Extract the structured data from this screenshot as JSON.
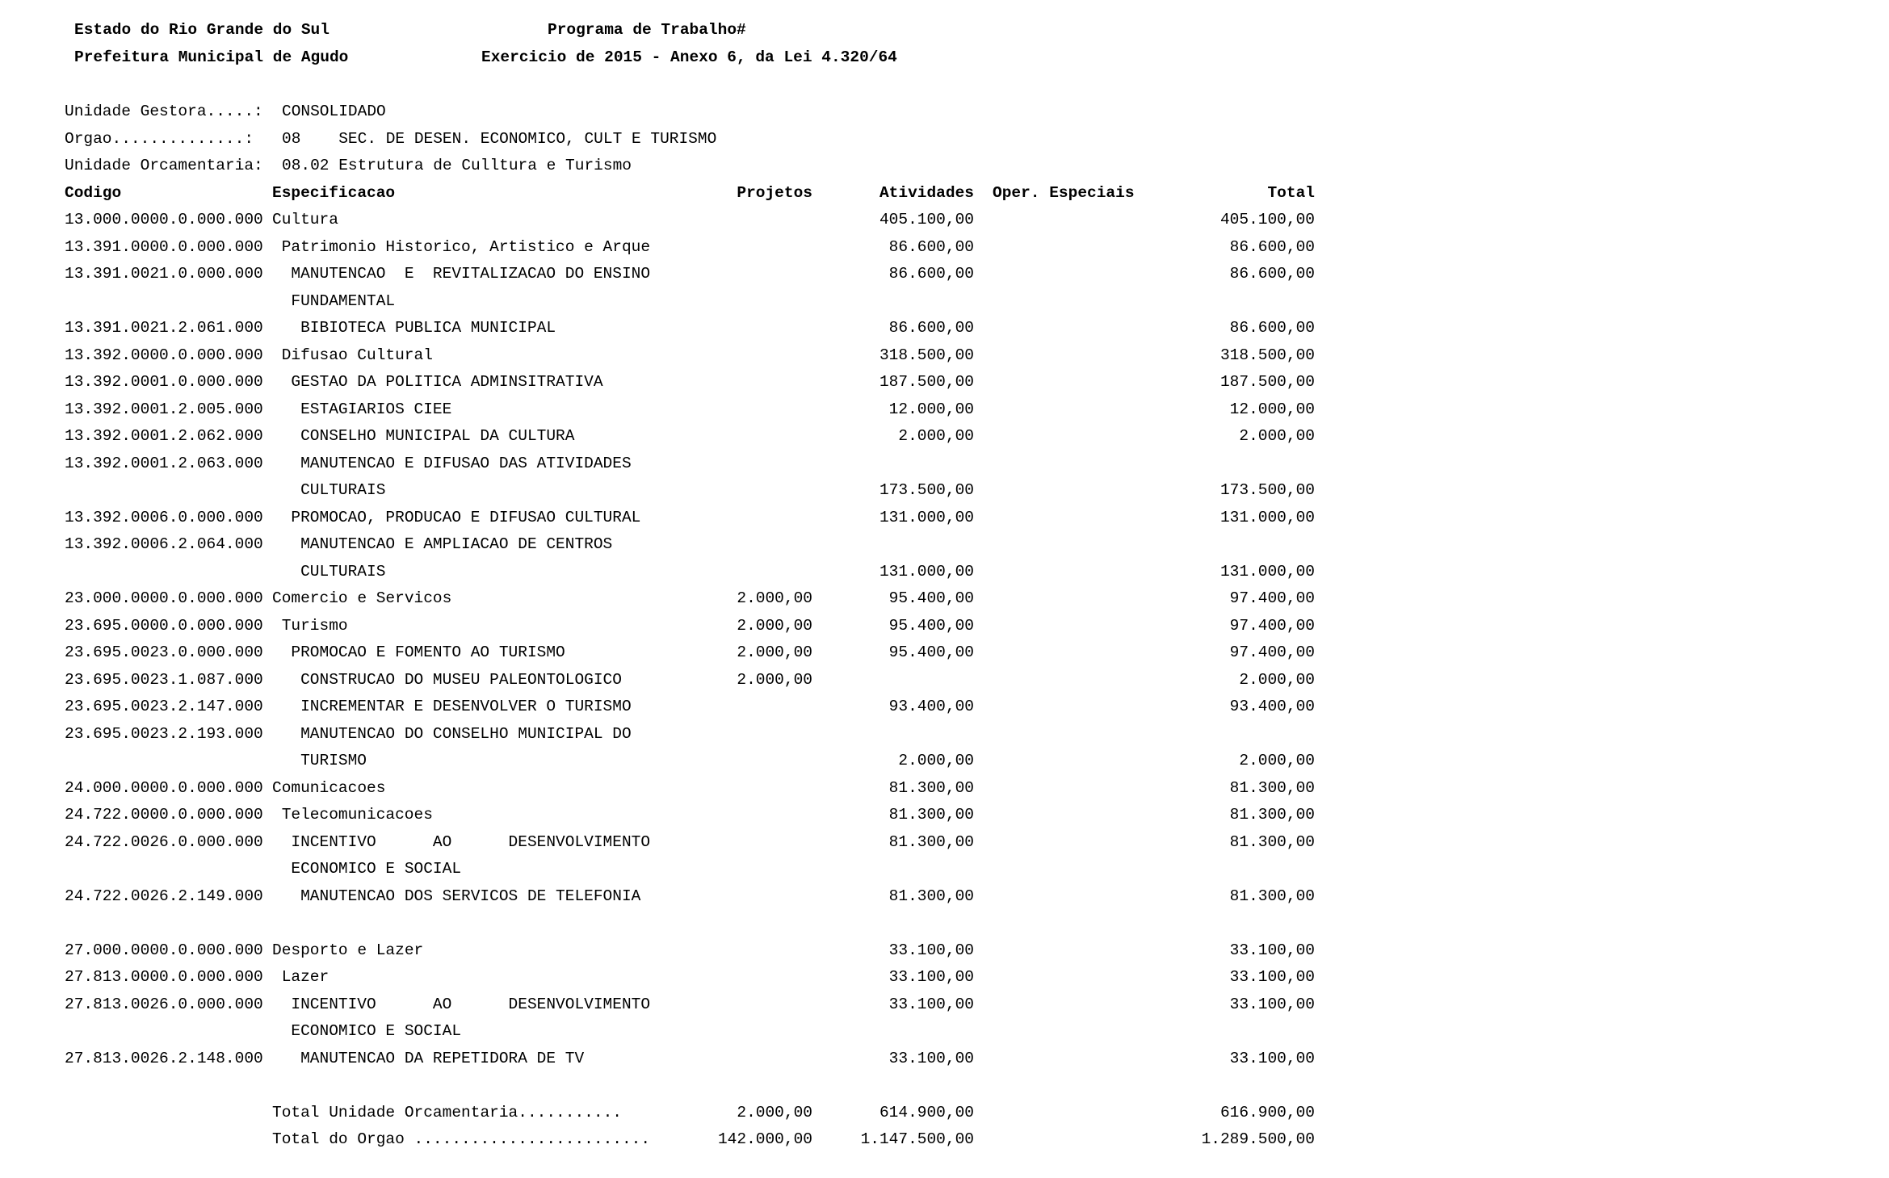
{
  "header": {
    "state": "Estado do Rio Grande do Sul",
    "city": "Prefeitura Municipal de Agudo",
    "title": "Programa de Trabalho#",
    "subtitle": "Exercicio de 2015 - Anexo 6, da Lei 4.320/64"
  },
  "info": {
    "unidade_gestora_label": "Unidade Gestora.....:",
    "unidade_gestora": "CONSOLIDADO",
    "orgao_label": "Orgao..............:",
    "orgao": "08    SEC. DE DESEN. ECONOMICO, CULT E TURISMO",
    "unidade_orc_label": "Unidade Orcamentaria:",
    "unidade_orc": "08.02 Estrutura de Culltura e Turismo"
  },
  "columns": {
    "codigo": "Codigo",
    "especificacao": "Especificacao",
    "projetos": "Projetos",
    "atividades": "Atividades",
    "oper_especiais": "Oper. Especiais",
    "total": "Total"
  },
  "rows": [
    {
      "code": "13.000.0000.0.000.000",
      "spec": "Cultura",
      "level": 0,
      "proj": "",
      "ativ": "405.100,00",
      "total": "405.100,00"
    },
    {
      "code": "13.391.0000.0.000.000",
      "spec": "Patrimonio Historico, Artistico e Arque",
      "level": 1,
      "proj": "",
      "ativ": "86.600,00",
      "total": "86.600,00"
    },
    {
      "code": "13.391.0021.0.000.000",
      "spec": "MANUTENCAO  E  REVITALIZACAO DO ENSINO",
      "level": 2,
      "proj": "",
      "ativ": "86.600,00",
      "total": "86.600,00"
    },
    {
      "code": "",
      "spec": "FUNDAMENTAL",
      "level": 2,
      "proj": "",
      "ativ": "",
      "total": ""
    },
    {
      "code": "13.391.0021.2.061.000",
      "spec": "BIBIOTECA PUBLICA MUNICIPAL",
      "level": 3,
      "proj": "",
      "ativ": "86.600,00",
      "total": "86.600,00"
    },
    {
      "code": "13.392.0000.0.000.000",
      "spec": "Difusao Cultural",
      "level": 1,
      "proj": "",
      "ativ": "318.500,00",
      "total": "318.500,00"
    },
    {
      "code": "13.392.0001.0.000.000",
      "spec": "GESTAO DA POLITICA ADMINSITRATIVA",
      "level": 2,
      "proj": "",
      "ativ": "187.500,00",
      "total": "187.500,00"
    },
    {
      "code": "13.392.0001.2.005.000",
      "spec": "ESTAGIARIOS CIEE",
      "level": 3,
      "proj": "",
      "ativ": "12.000,00",
      "total": "12.000,00"
    },
    {
      "code": "13.392.0001.2.062.000",
      "spec": "CONSELHO MUNICIPAL DA CULTURA",
      "level": 3,
      "proj": "",
      "ativ": "2.000,00",
      "total": "2.000,00"
    },
    {
      "code": "13.392.0001.2.063.000",
      "spec": "MANUTENCAO E DIFUSAO DAS ATIVIDADES",
      "level": 3,
      "proj": "",
      "ativ": "",
      "total": ""
    },
    {
      "code": "",
      "spec": "CULTURAIS",
      "level": 3,
      "proj": "",
      "ativ": "173.500,00",
      "total": "173.500,00"
    },
    {
      "code": "13.392.0006.0.000.000",
      "spec": "PROMOCAO, PRODUCAO E DIFUSAO CULTURAL",
      "level": 2,
      "proj": "",
      "ativ": "131.000,00",
      "total": "131.000,00"
    },
    {
      "code": "13.392.0006.2.064.000",
      "spec": "MANUTENCAO E AMPLIACAO DE CENTROS",
      "level": 3,
      "proj": "",
      "ativ": "",
      "total": ""
    },
    {
      "code": "",
      "spec": "CULTURAIS",
      "level": 3,
      "proj": "",
      "ativ": "131.000,00",
      "total": "131.000,00"
    },
    {
      "code": "23.000.0000.0.000.000",
      "spec": "Comercio e Servicos",
      "level": 0,
      "proj": "2.000,00",
      "ativ": "95.400,00",
      "total": "97.400,00"
    },
    {
      "code": "23.695.0000.0.000.000",
      "spec": "Turismo",
      "level": 1,
      "proj": "2.000,00",
      "ativ": "95.400,00",
      "total": "97.400,00"
    },
    {
      "code": "23.695.0023.0.000.000",
      "spec": "PROMOCAO E FOMENTO AO TURISMO",
      "level": 2,
      "proj": "2.000,00",
      "ativ": "95.400,00",
      "total": "97.400,00"
    },
    {
      "code": "23.695.0023.1.087.000",
      "spec": "CONSTRUCAO DO MUSEU PALEONTOLOGICO",
      "level": 3,
      "proj": "2.000,00",
      "ativ": "",
      "total": "2.000,00"
    },
    {
      "code": "23.695.0023.2.147.000",
      "spec": "INCREMENTAR E DESENVOLVER O TURISMO",
      "level": 3,
      "proj": "",
      "ativ": "93.400,00",
      "total": "93.400,00"
    },
    {
      "code": "23.695.0023.2.193.000",
      "spec": "MANUTENCAO DO CONSELHO MUNICIPAL DO",
      "level": 3,
      "proj": "",
      "ativ": "",
      "total": ""
    },
    {
      "code": "",
      "spec": "TURISMO",
      "level": 3,
      "proj": "",
      "ativ": "2.000,00",
      "total": "2.000,00"
    },
    {
      "code": "24.000.0000.0.000.000",
      "spec": "Comunicacoes",
      "level": 0,
      "proj": "",
      "ativ": "81.300,00",
      "total": "81.300,00"
    },
    {
      "code": "24.722.0000.0.000.000",
      "spec": "Telecomunicacoes",
      "level": 1,
      "proj": "",
      "ativ": "81.300,00",
      "total": "81.300,00"
    },
    {
      "code": "24.722.0026.0.000.000",
      "spec": "INCENTIVO      AO      DESENVOLVIMENTO",
      "level": 2,
      "proj": "",
      "ativ": "81.300,00",
      "total": "81.300,00"
    },
    {
      "code": "",
      "spec": "ECONOMICO E SOCIAL",
      "level": 2,
      "proj": "",
      "ativ": "",
      "total": ""
    },
    {
      "code": "24.722.0026.2.149.000",
      "spec": "MANUTENCAO DOS SERVICOS DE TELEFONIA",
      "level": 3,
      "proj": "",
      "ativ": "81.300,00",
      "total": "81.300,00"
    },
    {
      "code": "",
      "spec": "",
      "level": 0,
      "proj": "",
      "ativ": "",
      "total": ""
    },
    {
      "code": "27.000.0000.0.000.000",
      "spec": "Desporto e Lazer",
      "level": 0,
      "proj": "",
      "ativ": "33.100,00",
      "total": "33.100,00"
    },
    {
      "code": "27.813.0000.0.000.000",
      "spec": "Lazer",
      "level": 1,
      "proj": "",
      "ativ": "33.100,00",
      "total": "33.100,00"
    },
    {
      "code": "27.813.0026.0.000.000",
      "spec": "INCENTIVO      AO      DESENVOLVIMENTO",
      "level": 2,
      "proj": "",
      "ativ": "33.100,00",
      "total": "33.100,00"
    },
    {
      "code": "",
      "spec": "ECONOMICO E SOCIAL",
      "level": 2,
      "proj": "",
      "ativ": "",
      "total": ""
    },
    {
      "code": "27.813.0026.2.148.000",
      "spec": "MANUTENCAO DA REPETIDORA DE TV",
      "level": 3,
      "proj": "",
      "ativ": "33.100,00",
      "total": "33.100,00"
    },
    {
      "code": "",
      "spec": "",
      "level": 0,
      "proj": "",
      "ativ": "",
      "total": ""
    },
    {
      "code": "",
      "spec": "Total Unidade Orcamentaria...........",
      "level": 0,
      "proj": "2.000,00",
      "ativ": "614.900,00",
      "total": "616.900,00"
    },
    {
      "code": "",
      "spec": "Total do Orgao .........................",
      "level": 0,
      "proj": "142.000,00",
      "ativ": "1.147.500,00",
      "total": "1.289.500,00"
    }
  ]
}
